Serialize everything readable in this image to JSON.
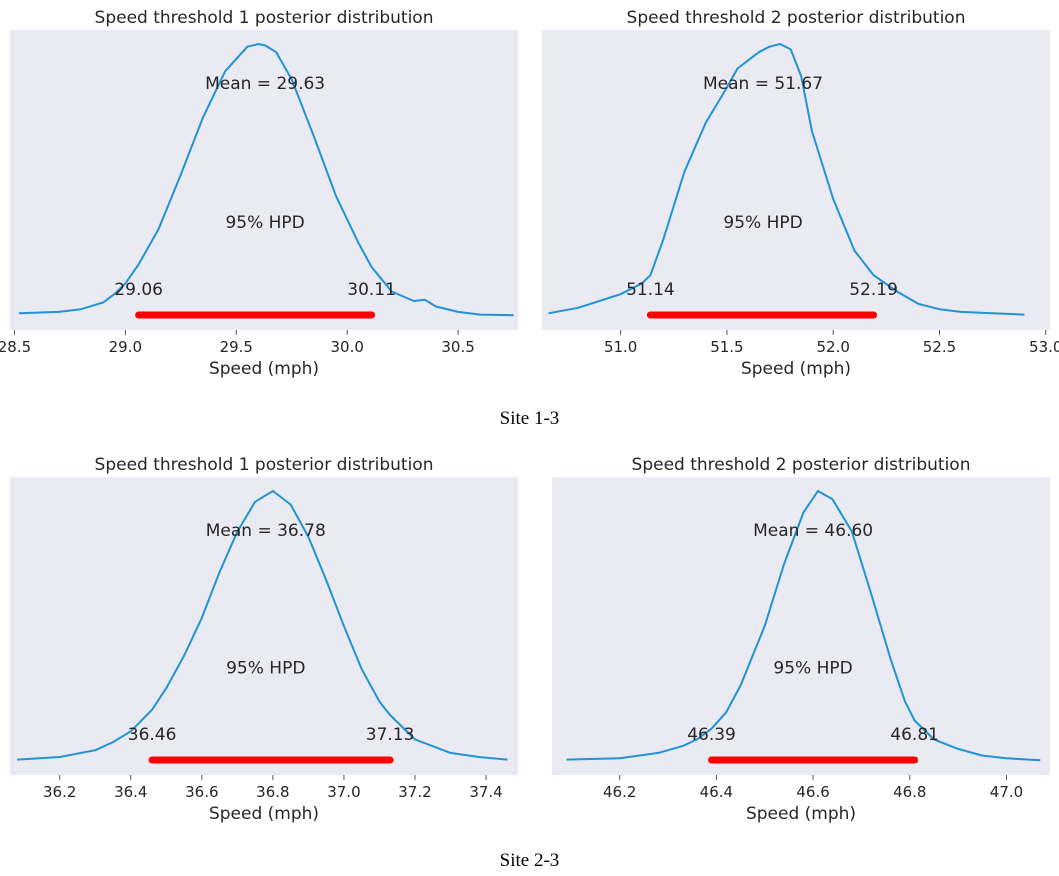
{
  "captions": [
    "Site 1-3",
    "Site 2-3"
  ],
  "style": {
    "panel_bg": "#eaeaf2",
    "line_color": "#1f93d6",
    "hpd_color": "#ff0000"
  },
  "chart_data": [
    {
      "type": "line",
      "title": "Speed threshold 1 posterior distribution",
      "xlabel": "Speed (mph)",
      "xlim": [
        28.48,
        30.77
      ],
      "xticks": [
        28.5,
        29.0,
        29.5,
        30.0,
        30.5
      ],
      "tick_labels": [
        "28.5",
        "29.0",
        "29.5",
        "30.0",
        "30.5"
      ],
      "series": [
        {
          "x": [
            28.52,
            28.7,
            28.8,
            28.9,
            28.95,
            29.0,
            29.06,
            29.15,
            29.25,
            29.35,
            29.45,
            29.55,
            29.6,
            29.63,
            29.68,
            29.75,
            29.85,
            29.95,
            30.05,
            30.11,
            30.2,
            30.3,
            30.35,
            30.4,
            30.5,
            30.6,
            30.75
          ],
          "y": [
            0.01,
            0.015,
            0.025,
            0.05,
            0.08,
            0.12,
            0.19,
            0.32,
            0.52,
            0.73,
            0.9,
            0.99,
            1.0,
            0.995,
            0.97,
            0.87,
            0.66,
            0.44,
            0.27,
            0.18,
            0.09,
            0.055,
            0.06,
            0.035,
            0.015,
            0.005,
            0.003
          ]
        }
      ],
      "mean_label": "Mean = 29.63",
      "mean": 29.63,
      "hpd_label": "95% HPD",
      "hpd": [
        29.06,
        30.11
      ],
      "hpd_labels": [
        "29.06",
        "30.11"
      ]
    },
    {
      "type": "line",
      "title": "Speed threshold 2 posterior distribution",
      "xlabel": "Speed (mph)",
      "xlim": [
        50.63,
        53.02
      ],
      "xticks": [
        51.0,
        51.5,
        52.0,
        52.5,
        53.0
      ],
      "tick_labels": [
        "51.0",
        "51.5",
        "52.0",
        "52.5",
        "53.0"
      ],
      "series": [
        {
          "x": [
            50.66,
            50.8,
            50.9,
            51.0,
            51.1,
            51.14,
            51.2,
            51.3,
            51.4,
            51.5,
            51.55,
            51.6,
            51.65,
            51.7,
            51.75,
            51.8,
            51.85,
            51.9,
            52.0,
            52.1,
            52.19,
            52.3,
            52.4,
            52.5,
            52.6,
            52.75,
            52.9
          ],
          "y": [
            0.01,
            0.03,
            0.055,
            0.08,
            0.12,
            0.15,
            0.28,
            0.53,
            0.71,
            0.84,
            0.91,
            0.94,
            0.97,
            0.99,
            1.0,
            0.98,
            0.88,
            0.68,
            0.43,
            0.24,
            0.15,
            0.09,
            0.045,
            0.025,
            0.015,
            0.01,
            0.005
          ]
        }
      ],
      "mean_label": "Mean = 51.67",
      "mean": 51.67,
      "hpd_label": "95% HPD",
      "hpd": [
        51.14,
        52.19
      ],
      "hpd_labels": [
        "51.14",
        "52.19"
      ]
    },
    {
      "type": "line",
      "title": "Speed threshold 1 posterior distribution",
      "xlabel": "Speed (mph)",
      "xlim": [
        36.06,
        37.49
      ],
      "xticks": [
        36.2,
        36.4,
        36.6,
        36.8,
        37.0,
        37.2,
        37.4
      ],
      "tick_labels": [
        "36.2",
        "36.4",
        "36.6",
        "36.8",
        "37.0",
        "37.2",
        "37.4"
      ],
      "series": [
        {
          "x": [
            36.08,
            36.2,
            36.3,
            36.35,
            36.4,
            36.46,
            36.5,
            36.55,
            36.6,
            36.65,
            36.7,
            36.75,
            36.8,
            36.85,
            36.9,
            36.95,
            37.0,
            37.05,
            37.1,
            37.13,
            37.2,
            37.3,
            37.38,
            37.46
          ],
          "y": [
            0.005,
            0.015,
            0.04,
            0.07,
            0.11,
            0.19,
            0.27,
            0.39,
            0.53,
            0.7,
            0.85,
            0.96,
            1.0,
            0.95,
            0.83,
            0.67,
            0.5,
            0.34,
            0.22,
            0.17,
            0.08,
            0.03,
            0.015,
            0.005
          ]
        }
      ],
      "mean_label": "Mean = 36.78",
      "mean": 36.78,
      "hpd_label": "95% HPD",
      "hpd": [
        36.46,
        37.13
      ],
      "hpd_labels": [
        "36.46",
        "37.13"
      ]
    },
    {
      "type": "line",
      "title": "Speed threshold 2 posterior distribution",
      "xlabel": "Speed (mph)",
      "xlim": [
        46.06,
        47.09
      ],
      "xticks": [
        46.2,
        46.4,
        46.6,
        46.8,
        47.0
      ],
      "tick_labels": [
        "46.2",
        "46.4",
        "46.6",
        "46.8",
        "47.0"
      ],
      "series": [
        {
          "x": [
            46.09,
            46.2,
            46.28,
            46.33,
            46.36,
            46.39,
            46.42,
            46.45,
            46.5,
            46.54,
            46.58,
            46.61,
            46.64,
            46.68,
            46.72,
            46.76,
            46.79,
            46.81,
            46.85,
            46.9,
            46.95,
            47.0,
            47.07
          ],
          "y": [
            0.005,
            0.01,
            0.03,
            0.055,
            0.08,
            0.12,
            0.18,
            0.28,
            0.5,
            0.73,
            0.92,
            1.0,
            0.97,
            0.85,
            0.62,
            0.38,
            0.22,
            0.15,
            0.08,
            0.045,
            0.02,
            0.01,
            0.003
          ]
        }
      ],
      "mean_label": "Mean = 46.60",
      "mean": 46.6,
      "hpd_label": "95% HPD",
      "hpd": [
        46.39,
        46.81
      ],
      "hpd_labels": [
        "46.39",
        "46.81"
      ]
    }
  ]
}
